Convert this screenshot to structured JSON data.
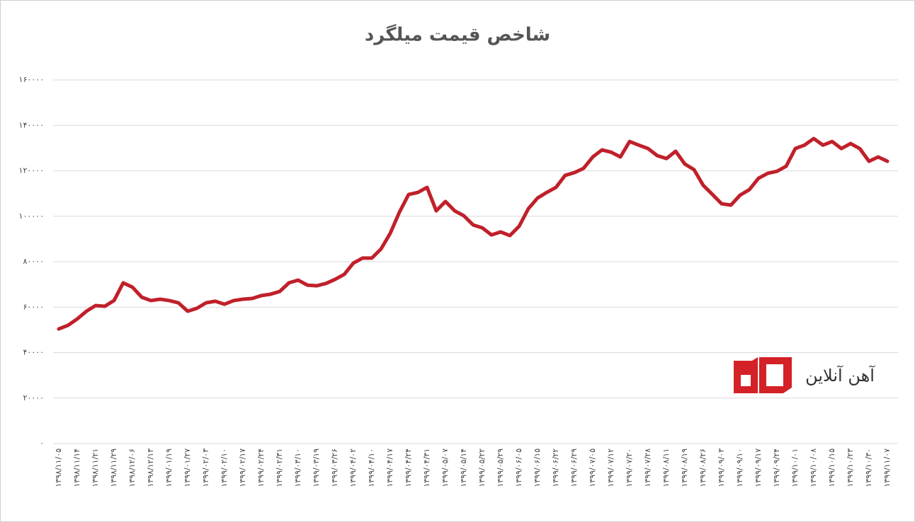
{
  "chart_data": {
    "type": "line",
    "title": "شاخص قیمت میلگرد",
    "annotations": [
      "آهن آنلاین"
    ],
    "categories": [
      "۱۳۹۸/۱۱/۰۵",
      null,
      "۱۳۹۸/۱۱/۱۴",
      null,
      "۱۳۹۸/۱۱/۲۱",
      null,
      "۱۳۹۸/۱۱/۲۹",
      null,
      "۱۳۹۸/۱۲/۰۶",
      null,
      "۱۳۹۸/۱۲/۱۳",
      null,
      "۱۳۹۹/۰۱/۱۹",
      null,
      "۱۳۹۹/۰۱/۲۷",
      null,
      "۱۳۹۹/۰۲/۰۳",
      null,
      "۱۳۹۹/۰۲/۱۰",
      null,
      "۱۳۹۹/۰۲/۱۷",
      null,
      "۱۳۹۹/۰۲/۲۴",
      null,
      "۱۳۹۹/۰۲/۳۱",
      null,
      "۱۳۹۹/۰۳/۱۰",
      null,
      "۱۳۹۹/۰۳/۱۹",
      null,
      "۱۳۹۹/۰۳/۲۶",
      null,
      "۱۳۹۹/۰۴/۰۲",
      null,
      "۱۳۹۹/۰۴/۱۰",
      null,
      "۱۳۹۹/۰۴/۱۷",
      null,
      "۱۳۹۹/۰۴/۲۴",
      null,
      "۱۳۹۹/۰۴/۳۱",
      null,
      "۱۳۹۹/۰۵/۰۷",
      null,
      "۱۳۹۹/۰۵/۱۴",
      null,
      "۱۳۹۹/۰۵/۲۲",
      null,
      "۱۳۹۹/۰۵/۲۹",
      null,
      "۱۳۹۹/۰۶/۰۵",
      null,
      "۱۳۹۹/۰۶/۱۵",
      null,
      "۱۳۹۹/۰۶/۲۲",
      null,
      "۱۳۹۹/۰۶/۲۹",
      null,
      "۱۳۹۹/۰۷/۰۵",
      null,
      "۱۳۹۹/۰۷/۱۲",
      null,
      "۱۳۹۹/۰۷/۲۰",
      null,
      "۱۳۹۹/۰۷/۲۸",
      null,
      "۱۳۹۹/۰۸/۱۱",
      null,
      "۱۳۹۹/۰۸/۱۹",
      null,
      "۱۳۹۹/۰۸/۲۶",
      null,
      "۱۳۹۹/۰۹/۰۳",
      null,
      "۱۳۹۹/۰۹/۱۰",
      null,
      "۱۳۹۹/۰۹/۱۷",
      null,
      "۱۳۹۹/۰۹/۲۴",
      null,
      "۱۳۹۹/۱۰/۰۱",
      null,
      "۱۳۹۹/۱۰/۰۸",
      null,
      "۱۳۹۹/۱۰/۱۵",
      null,
      "۱۳۹۹/۱۰/۲۳",
      null,
      "۱۳۹۹/۱۰/۳۰",
      null,
      "۱۳۹۹/۱۱/۰۷"
    ],
    "values": [
      50400,
      52000,
      54800,
      58200,
      60700,
      60400,
      62900,
      70700,
      68800,
      64400,
      62900,
      63500,
      62900,
      61900,
      58200,
      59500,
      61900,
      62600,
      61300,
      62900,
      63500,
      63800,
      65100,
      65700,
      66900,
      70700,
      71900,
      69700,
      69400,
      70400,
      72200,
      74400,
      79400,
      81600,
      81600,
      85600,
      92500,
      101800,
      109600,
      110500,
      112700,
      102400,
      106500,
      102400,
      100200,
      96200,
      94900,
      91800,
      93100,
      91500,
      95600,
      103300,
      108000,
      110500,
      112700,
      118000,
      119200,
      121100,
      126100,
      129200,
      128200,
      126100,
      132900,
      131300,
      129800,
      126700,
      125400,
      128600,
      123000,
      120500,
      113600,
      109600,
      105500,
      104900,
      109300,
      111700,
      116700,
      118900,
      119800,
      122000,
      129800,
      131300,
      134200,
      131300,
      132900,
      129800,
      132000,
      129800,
      124200,
      126100,
      124200
    ],
    "color": "#c0202a",
    "ylim": [
      0,
      160000
    ],
    "yticks": [
      {
        "value": 0,
        "label": "۰"
      },
      {
        "value": 20000,
        "label": "۲۰۰۰۰"
      },
      {
        "value": 40000,
        "label": "۴۰۰۰۰"
      },
      {
        "value": 60000,
        "label": "۶۰۰۰۰"
      },
      {
        "value": 80000,
        "label": "۸۰۰۰۰"
      },
      {
        "value": 100000,
        "label": "۱۰۰۰۰۰"
      },
      {
        "value": 120000,
        "label": "۱۲۰۰۰۰"
      },
      {
        "value": 140000,
        "label": "۱۴۰۰۰۰"
      },
      {
        "value": 160000,
        "label": "۱۶۰۰۰۰"
      }
    ],
    "grid": true
  }
}
